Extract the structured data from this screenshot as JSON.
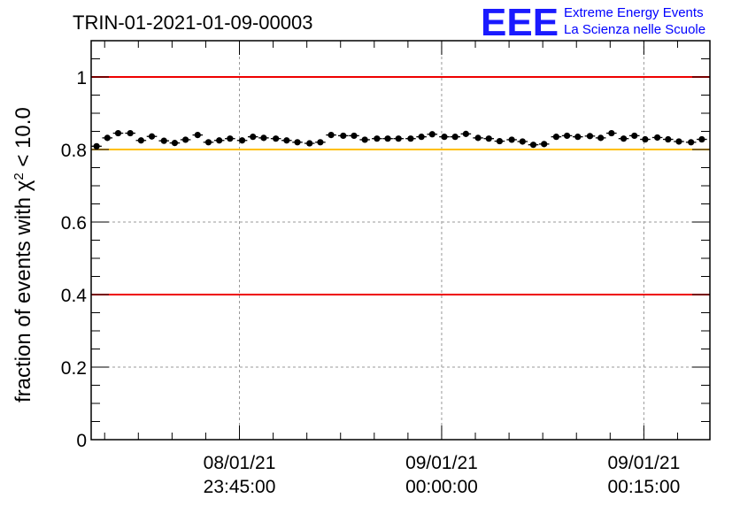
{
  "header": {
    "title": "TRIN-01-2021-01-09-00003",
    "logo_mark": "EEE",
    "logo_line1": "Extreme Energy Events",
    "logo_line2": "La Scienza nelle Scuole"
  },
  "chart_data": {
    "type": "scatter",
    "title": "TRIN-01-2021-01-09-00003",
    "ylabel_prefix": "fraction of events with χ",
    "ylabel_sup": "2",
    "ylabel_suffix": " < 10.0",
    "xlabel": "",
    "x_unit": "minutes relative to 09/01/21 00:00:00",
    "xlim": [
      -26.0,
      19.9
    ],
    "ylim": [
      0,
      1.1
    ],
    "y_ticks": [
      {
        "value": 0,
        "label": "0"
      },
      {
        "value": 0.2,
        "label": "0.2"
      },
      {
        "value": 0.4,
        "label": "0.4"
      },
      {
        "value": 0.6,
        "label": "0.6"
      },
      {
        "value": 0.8,
        "label": "0.8"
      },
      {
        "value": 1.0,
        "label": "1"
      }
    ],
    "x_ticks": [
      {
        "value": -15,
        "date": "08/01/21",
        "time": "23:45:00"
      },
      {
        "value": 0,
        "date": "09/01/21",
        "time": "00:00:00"
      },
      {
        "value": 15,
        "date": "09/01/21",
        "time": "00:15:00"
      }
    ],
    "grid": true,
    "reference_lines": [
      {
        "y": 1.0,
        "color": "#ee0000"
      },
      {
        "y": 0.8,
        "color": "#ffbf00"
      },
      {
        "y": 0.4,
        "color": "#ee0000"
      }
    ],
    "marker_color": "#000000",
    "bin_halfwidth": 0.38,
    "series": [
      {
        "x": [
          -25.6,
          -24.8,
          -24.0,
          -23.1,
          -22.3,
          -21.5,
          -20.6,
          -19.8,
          -19.0,
          -18.1,
          -17.3,
          -16.5,
          -15.7,
          -14.8,
          -14.0,
          -13.2,
          -12.3,
          -11.5,
          -10.7,
          -9.8,
          -9.0,
          -8.2,
          -7.3,
          -6.5,
          -5.7,
          -4.8,
          -4.0,
          -3.2,
          -2.3,
          -1.5,
          -0.7,
          0.2,
          1.0,
          1.8,
          2.7,
          3.5,
          4.3,
          5.2,
          6.0,
          6.8,
          7.6,
          8.5,
          9.3,
          10.1,
          11.0,
          11.8,
          12.6,
          13.5,
          14.3,
          15.1,
          16.0,
          16.8,
          17.6,
          18.5,
          19.3
        ],
        "y": [
          0.809,
          0.832,
          0.845,
          0.845,
          0.825,
          0.836,
          0.824,
          0.818,
          0.827,
          0.84,
          0.82,
          0.825,
          0.83,
          0.825,
          0.835,
          0.832,
          0.83,
          0.825,
          0.82,
          0.817,
          0.82,
          0.84,
          0.838,
          0.838,
          0.827,
          0.83,
          0.83,
          0.83,
          0.83,
          0.835,
          0.842,
          0.835,
          0.835,
          0.843,
          0.832,
          0.83,
          0.823,
          0.827,
          0.822,
          0.813,
          0.815,
          0.835,
          0.838,
          0.835,
          0.837,
          0.832,
          0.845,
          0.83,
          0.838,
          0.828,
          0.833,
          0.828,
          0.822,
          0.82,
          0.828
        ],
        "y_err": 0.006
      }
    ]
  }
}
